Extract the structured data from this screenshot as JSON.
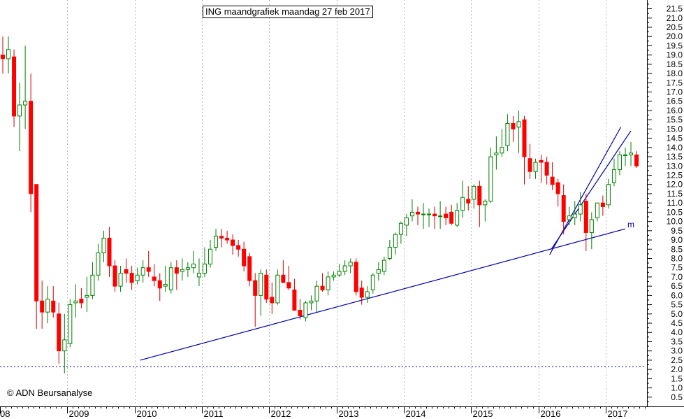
{
  "chart_data": {
    "type": "candlestick",
    "title": "ING maandgrafiek maandag 27 feb 2017",
    "copyright": "© ADN Beursanalyse",
    "ylim": [
      0,
      22
    ],
    "yticks": [
      0.5,
      1.0,
      1.5,
      2.0,
      2.5,
      3.0,
      3.5,
      4.0,
      4.5,
      5.0,
      5.5,
      6.0,
      6.5,
      7.0,
      7.5,
      8.0,
      8.5,
      9.0,
      9.5,
      10.0,
      10.5,
      11.0,
      11.5,
      12.0,
      12.5,
      13.0,
      13.5,
      14.0,
      14.5,
      15.0,
      15.5,
      16.0,
      16.5,
      17.0,
      17.5,
      18.0,
      18.5,
      19.0,
      19.5,
      20.0,
      20.5,
      21.0,
      21.5
    ],
    "ytick_labels": [
      "0.5",
      "1.0",
      "1.5",
      "2.0",
      "2.5",
      "3.0",
      "3.5",
      "4.0",
      "4.5",
      "5.0",
      "5.5",
      "6.0",
      "6.5",
      "7.0",
      "7.5",
      "8.0",
      "8.5",
      "9.0",
      "9.5",
      "10.0",
      "10.5",
      "11.0",
      "11.5",
      "12.0",
      "12.5",
      "13.0",
      "13.5",
      "14.0",
      "14.5",
      "15.0",
      "15.5",
      "16.0",
      "16.5",
      "17.0",
      "17.5",
      "18.0",
      "18.5",
      "19.0",
      "19.5",
      "20.0",
      "20.5",
      "21.0",
      "21.5"
    ],
    "xticks": [
      "08",
      "2009",
      "2010",
      "2011",
      "2012",
      "2013",
      "2014",
      "2015",
      "2016",
      "2017"
    ],
    "xtick_index": [
      0,
      12,
      24,
      36,
      48,
      60,
      72,
      84,
      96,
      108
    ],
    "series": [
      {
        "values": [
          [
            19.0,
            20.0,
            18.0,
            18.8
          ],
          [
            18.8,
            20.0,
            18.0,
            19.3
          ],
          [
            18.9,
            19.3,
            15.1,
            15.7
          ],
          [
            15.7,
            17.5,
            13.8,
            16.3
          ],
          [
            16.3,
            19.5,
            15.0,
            16.5
          ],
          [
            16.5,
            18.0,
            10.5,
            11.5
          ],
          [
            12.0,
            12.0,
            4.2,
            5.7
          ],
          [
            5.7,
            6.8,
            4.2,
            5.1
          ],
          [
            5.1,
            6.5,
            4.5,
            5.8
          ],
          [
            5.7,
            6.5,
            4.8,
            5.1
          ],
          [
            5.0,
            5.6,
            2.3,
            3.0
          ],
          [
            3.0,
            5.0,
            1.8,
            3.6
          ],
          [
            3.4,
            5.8,
            3.2,
            5.5
          ],
          [
            5.6,
            6.6,
            4.8,
            5.7
          ],
          [
            5.8,
            6.4,
            5.3,
            5.6
          ],
          [
            5.9,
            7.0,
            5.1,
            6.0
          ],
          [
            6.0,
            7.8,
            5.8,
            7.1
          ],
          [
            7.1,
            8.8,
            6.8,
            8.3
          ],
          [
            8.3,
            9.5,
            7.8,
            9.1
          ],
          [
            9.1,
            9.7,
            7.0,
            7.6
          ],
          [
            7.6,
            7.9,
            6.2,
            6.5
          ],
          [
            6.5,
            7.6,
            6.2,
            7.2
          ],
          [
            7.4,
            8.0,
            6.7,
            7.2
          ],
          [
            7.2,
            7.6,
            6.3,
            6.7
          ],
          [
            6.8,
            7.5,
            6.6,
            7.1
          ],
          [
            7.1,
            7.9,
            6.7,
            7.5
          ],
          [
            7.5,
            8.4,
            7.0,
            7.3
          ],
          [
            7.0,
            7.7,
            6.5,
            6.8
          ],
          [
            6.8,
            7.2,
            5.7,
            6.4
          ],
          [
            6.5,
            7.6,
            6.2,
            6.6
          ],
          [
            6.3,
            7.8,
            6.1,
            7.5
          ],
          [
            7.5,
            7.9,
            6.3,
            7.2
          ],
          [
            7.3,
            8.0,
            6.8,
            7.4
          ],
          [
            7.4,
            7.8,
            7.0,
            7.5
          ],
          [
            7.5,
            8.4,
            7.2,
            7.7
          ],
          [
            7.0,
            8.0,
            6.5,
            7.2
          ],
          [
            7.2,
            8.6,
            7.0,
            7.7
          ],
          [
            7.7,
            9.0,
            7.5,
            8.5
          ],
          [
            8.6,
            9.6,
            8.4,
            9.2
          ],
          [
            9.2,
            9.6,
            8.6,
            9.1
          ],
          [
            9.1,
            9.5,
            8.8,
            9.0
          ],
          [
            9.0,
            9.3,
            8.2,
            8.7
          ],
          [
            8.7,
            9.0,
            8.1,
            8.5
          ],
          [
            8.5,
            8.9,
            7.3,
            7.6
          ],
          [
            8.1,
            8.3,
            6.5,
            6.8
          ],
          [
            6.8,
            7.2,
            4.3,
            6.0
          ],
          [
            6.0,
            7.4,
            4.9,
            7.2
          ],
          [
            7.1,
            7.4,
            5.6,
            5.8
          ],
          [
            5.9,
            6.7,
            5.0,
            5.6
          ],
          [
            5.6,
            7.4,
            5.5,
            7.1
          ],
          [
            7.1,
            7.9,
            6.7,
            6.7
          ],
          [
            6.7,
            7.6,
            6.3,
            6.4
          ],
          [
            6.3,
            6.9,
            5.2,
            5.2
          ],
          [
            5.2,
            5.8,
            4.7,
            4.9
          ],
          [
            4.8,
            5.7,
            4.6,
            5.6
          ],
          [
            5.6,
            6.0,
            5.2,
            5.7
          ],
          [
            5.7,
            6.8,
            5.1,
            6.5
          ],
          [
            6.5,
            7.2,
            6.2,
            6.3
          ],
          [
            6.3,
            7.3,
            6.0,
            7.0
          ],
          [
            7.0,
            7.3,
            6.8,
            7.1
          ],
          [
            7.1,
            7.7,
            7.0,
            7.3
          ],
          [
            7.3,
            7.9,
            7.1,
            7.6
          ],
          [
            7.6,
            8.0,
            7.2,
            7.8
          ],
          [
            7.8,
            8.0,
            6.0,
            6.2
          ],
          [
            6.4,
            6.8,
            5.5,
            5.9
          ],
          [
            5.9,
            6.5,
            5.6,
            6.2
          ],
          [
            6.3,
            7.2,
            6.1,
            7.1
          ],
          [
            7.2,
            7.8,
            6.8,
            7.4
          ],
          [
            7.3,
            8.1,
            7.1,
            7.9
          ],
          [
            8.0,
            9.0,
            7.9,
            8.6
          ],
          [
            8.6,
            9.4,
            8.2,
            9.3
          ],
          [
            9.3,
            10.0,
            8.8,
            9.9
          ],
          [
            9.8,
            10.4,
            9.2,
            10.2
          ],
          [
            10.3,
            11.2,
            10.0,
            10.5
          ],
          [
            10.5,
            10.8,
            9.8,
            10.4
          ],
          [
            10.4,
            11.0,
            9.6,
            10.4
          ],
          [
            10.4,
            10.7,
            9.7,
            10.4
          ],
          [
            10.4,
            10.8,
            9.6,
            10.3
          ],
          [
            10.3,
            11.1,
            9.6,
            10.3
          ],
          [
            10.4,
            10.8,
            9.8,
            10.2
          ],
          [
            10.5,
            10.9,
            9.8,
            9.9
          ],
          [
            9.8,
            11.0,
            9.7,
            10.6
          ],
          [
            10.6,
            12.2,
            10.2,
            11.3
          ],
          [
            11.2,
            11.9,
            10.6,
            11.0
          ],
          [
            11.2,
            12.0,
            10.7,
            11.9
          ],
          [
            11.9,
            12.2,
            9.7,
            10.9
          ],
          [
            10.9,
            11.2,
            10.0,
            11.1
          ],
          [
            11.1,
            14.0,
            11.0,
            13.5
          ],
          [
            13.6,
            14.6,
            12.8,
            13.7
          ],
          [
            13.7,
            15.0,
            13.5,
            14.0
          ],
          [
            14.1,
            15.8,
            13.8,
            15.3
          ],
          [
            15.3,
            15.7,
            14.3,
            15.0
          ],
          [
            15.1,
            16.0,
            13.7,
            15.4
          ],
          [
            15.5,
            15.7,
            12.0,
            13.5
          ],
          [
            13.4,
            14.2,
            12.3,
            12.7
          ],
          [
            12.7,
            13.4,
            12.3,
            13.2
          ],
          [
            13.3,
            13.6,
            12.1,
            13.2
          ],
          [
            13.2,
            13.5,
            12.0,
            12.5
          ],
          [
            12.4,
            13.2,
            11.7,
            12.0
          ],
          [
            12.1,
            12.3,
            10.8,
            11.5
          ],
          [
            11.4,
            12.0,
            9.3,
            10.0
          ],
          [
            10.1,
            10.8,
            9.8,
            10.3
          ],
          [
            10.2,
            11.1,
            9.8,
            10.4
          ],
          [
            10.4,
            11.6,
            10.0,
            10.9
          ],
          [
            11.1,
            11.5,
            8.4,
            9.4
          ],
          [
            9.4,
            10.5,
            8.5,
            10.1
          ],
          [
            10.2,
            11.0,
            10.0,
            11.0
          ],
          [
            11.0,
            11.4,
            10.3,
            10.8
          ],
          [
            10.9,
            12.3,
            10.7,
            12.0
          ],
          [
            12.1,
            13.4,
            11.9,
            12.8
          ],
          [
            12.8,
            13.8,
            12.5,
            13.6
          ],
          [
            13.6,
            14.0,
            13.0,
            13.6
          ],
          [
            13.6,
            14.3,
            13.0,
            13.7
          ],
          [
            13.6,
            13.8,
            12.9,
            13.0
          ]
        ]
      },
      {
        "values": [
          2.5,
          9.6
        ]
      },
      {
        "values": [
          8.2,
          15.1
        ]
      },
      {
        "values": [
          8.5,
          14.9
        ]
      },
      {
        "values": [
          2.15,
          2.15
        ]
      }
    ],
    "annotations": [
      "m"
    ]
  }
}
